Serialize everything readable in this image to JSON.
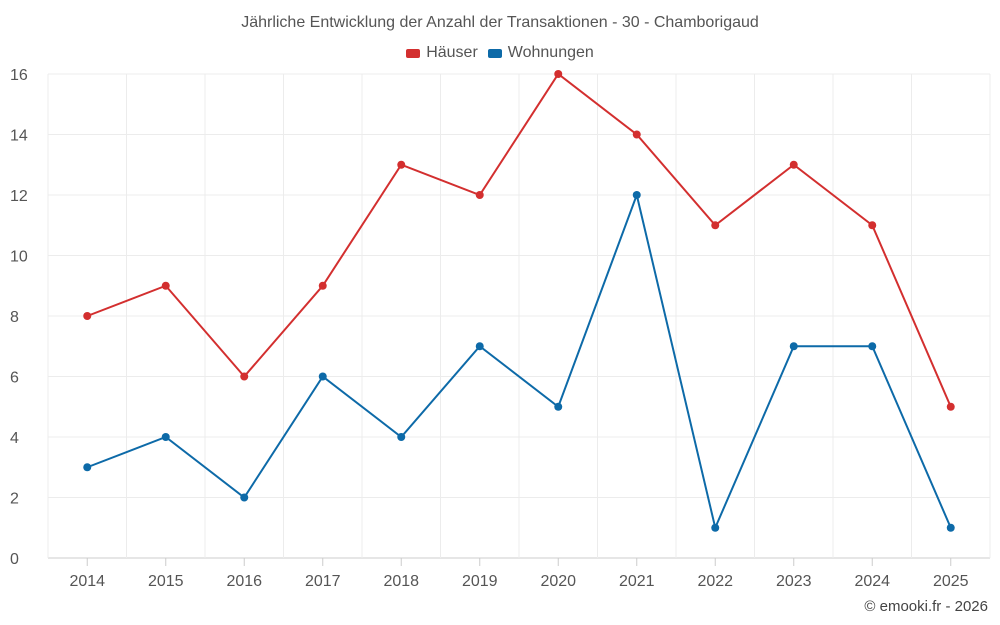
{
  "chart_data": {
    "type": "line",
    "title": "Jährliche Entwicklung der Anzahl der Transaktionen - 30 - Chamborigaud",
    "categories": [
      "2014",
      "2015",
      "2016",
      "2017",
      "2018",
      "2019",
      "2020",
      "2021",
      "2022",
      "2023",
      "2024",
      "2025"
    ],
    "series": [
      {
        "name": "Häuser",
        "color": "#d32f2f",
        "values": [
          8,
          9,
          6,
          9,
          13,
          12,
          16,
          14,
          11,
          13,
          11,
          5
        ]
      },
      {
        "name": "Wohnungen",
        "color": "#0d6aa8",
        "values": [
          3,
          4,
          2,
          6,
          4,
          7,
          5,
          12,
          1,
          7,
          7,
          1
        ]
      }
    ],
    "ylim": [
      0,
      16
    ],
    "yticks": [
      "0",
      "2",
      "4",
      "6",
      "8",
      "10",
      "12",
      "14",
      "16"
    ],
    "xlabel": "",
    "ylabel": "",
    "grid": true,
    "legend_position": "top-center"
  },
  "footer": {
    "copyright": "© emooki.fr - 2026"
  }
}
